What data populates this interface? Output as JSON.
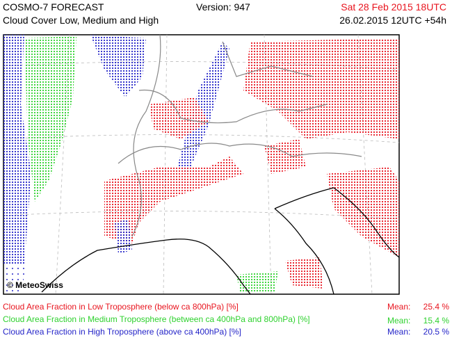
{
  "header": {
    "title": "COSMO-7 FORECAST",
    "subtitle": "Cloud Cover Low, Medium and High",
    "version": "Version: 947",
    "valid_time": "Sat 28 Feb 2015 18UTC",
    "run_time": "26.02.2015 12UTC +54h"
  },
  "map": {
    "copyright": "© MeteoSwiss"
  },
  "legend": [
    {
      "label": "Cloud Area Fraction in Low Troposphere (below ca 800hPa) [%]",
      "mean_label": "Mean:",
      "mean": "25.4 %"
    },
    {
      "label": "Cloud Area Fraction in Medium Troposphere (between ca 400hPa and 800hPa) [%]",
      "mean_label": "Mean:",
      "mean": "15.4 %"
    },
    {
      "label": "Cloud Area Fraction in High Troposphere (above ca 400hPa) [%]",
      "mean_label": "Mean:",
      "mean": "20.5 %"
    }
  ]
}
